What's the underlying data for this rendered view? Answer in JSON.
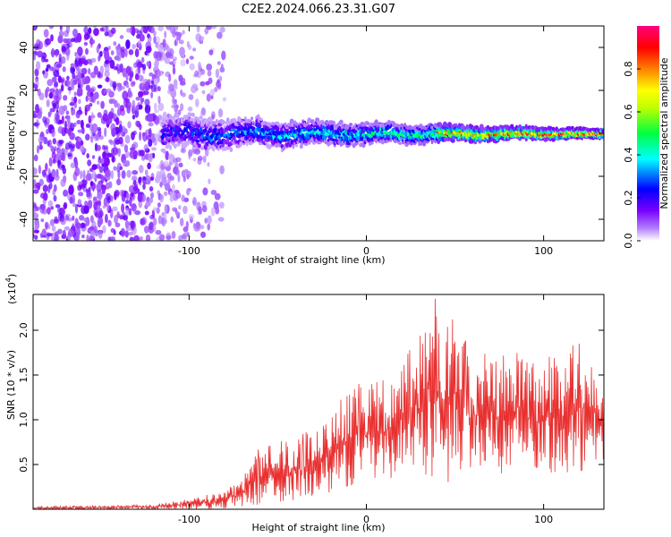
{
  "title": "C2E2.2024.066.23.31.G07",
  "colors": {
    "snr_line": "#e83030",
    "frame": "#000000",
    "colormap": [
      "#ffffff",
      "#8a2be2",
      "#0000ff",
      "#00ffff",
      "#00ff00",
      "#ffff00",
      "#ff8000",
      "#ff0000",
      "#ff0080"
    ]
  },
  "chart_data": [
    {
      "type": "heatmap",
      "title": "C2E2.2024.066.23.31.G07",
      "xlabel": "Height of straight line (km)",
      "ylabel": "Frequency (Hz)",
      "xlim": [
        -188,
        134
      ],
      "ylim": [
        -50,
        50
      ],
      "x_ticks": [
        -100,
        0,
        100
      ],
      "y_ticks": [
        -40,
        -20,
        0,
        20,
        40
      ],
      "grid": false,
      "colorbar": {
        "label": "Normalized spectral amplitude",
        "range": [
          0.0,
          1.0
        ],
        "ticks": [
          "0.0",
          "0.2",
          "0.4",
          "0.6",
          "0.8"
        ]
      },
      "structure": {
        "noise_region_x": [
          -188,
          -80
        ],
        "signal_start_x": -115,
        "signal_center_frequency_hz": 0,
        "signal_bandwidth_hz_at_start": 12,
        "signal_bandwidth_hz_at_end": 3,
        "peak_amplitude_region_x": [
          40,
          134
        ]
      }
    },
    {
      "type": "line",
      "xlabel": "Height of straight line (km)",
      "ylabel": "SNR (10 * v/v)",
      "y_multiplier_label": "(x10",
      "y_multiplier_exp": "4",
      "y_multiplier_close": ")",
      "xlim": [
        -188,
        134
      ],
      "ylim": [
        0,
        2.4
      ],
      "x_ticks": [
        -100,
        0,
        100
      ],
      "y_ticks": [
        0.5,
        1.0,
        1.5,
        2.0
      ],
      "y_tick_labels": [
        "0.5",
        "1.0",
        "1.5",
        "2.0"
      ],
      "grid": false,
      "series": [
        {
          "color": "#e83030",
          "envelope_x": [
            -188,
            -120,
            -100,
            -80,
            -70,
            -60,
            -40,
            -20,
            -10,
            0,
            20,
            30,
            40,
            60,
            80,
            100,
            120,
            134
          ],
          "envelope_max": [
            0.03,
            0.05,
            0.12,
            0.2,
            0.35,
            0.7,
            0.8,
            1.0,
            1.4,
            1.4,
            1.6,
            2.0,
            2.4,
            1.75,
            1.75,
            1.75,
            1.85,
            1.45
          ],
          "envelope_min": [
            0.0,
            0.0,
            0.0,
            0.0,
            0.02,
            0.05,
            0.1,
            0.15,
            0.25,
            0.3,
            0.35,
            0.4,
            0.25,
            0.4,
            0.4,
            0.35,
            0.4,
            0.55
          ]
        }
      ]
    }
  ]
}
